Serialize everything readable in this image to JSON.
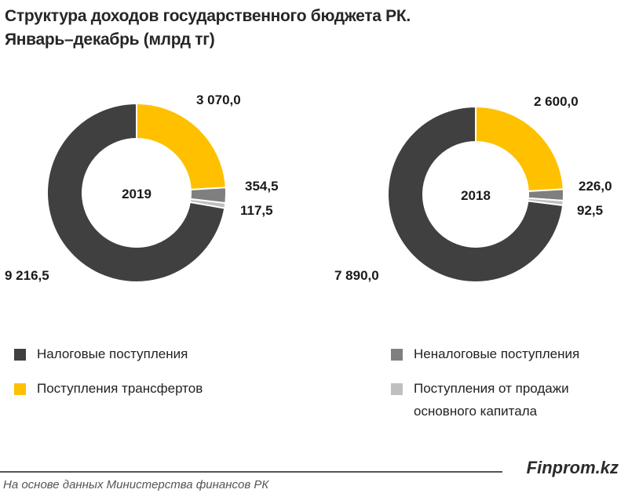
{
  "title_line1": "Структура доходов государственного бюджета РК.",
  "title_line2": "Январь–декабрь (млрд тг)",
  "colors": {
    "tax": "#404040",
    "transfers": "#FFC000",
    "nontax": "#7F7F7F",
    "capital": "#BFBFBF"
  },
  "chart_data": [
    {
      "type": "pie",
      "variant": "donut",
      "center_label": "2019",
      "categories": [
        "Поступления трансфертов",
        "Неналоговые поступления",
        "Поступления от продажи основного капитала",
        "Налоговые поступления"
      ],
      "values": [
        3070.0,
        354.5,
        117.5,
        9216.5
      ],
      "data_labels": [
        "3 070,0",
        "354,5",
        "117,5",
        "9 216,5"
      ]
    },
    {
      "type": "pie",
      "variant": "donut",
      "center_label": "2018",
      "categories": [
        "Поступления трансфертов",
        "Неналоговые поступления",
        "Поступления от продажи основного капитала",
        "Налоговые поступления"
      ],
      "values": [
        2600.0,
        226.0,
        92.5,
        7890.0
      ],
      "data_labels": [
        "2 600,0",
        "226,0",
        "92,5",
        "7 890,0"
      ]
    }
  ],
  "legend": [
    {
      "label": "Налоговые поступления",
      "key": "tax"
    },
    {
      "label": "Поступления трансфертов",
      "key": "transfers"
    },
    {
      "label": "Неналоговые поступления",
      "key": "nontax"
    },
    {
      "label": "Поступления от продажи основного капитала",
      "key": "capital"
    }
  ],
  "brand": "Finprom.kz",
  "source": "На основе данных Министерства финансов РК"
}
